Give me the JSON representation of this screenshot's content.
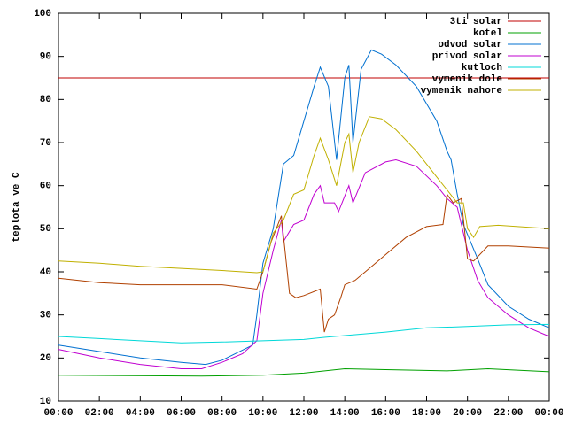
{
  "chart_data": {
    "type": "line",
    "y_label": "teplota ve C",
    "legend": "top-right",
    "xlim": [
      0,
      24
    ],
    "xticks": [
      {
        "value": 0,
        "label": "00:00"
      },
      {
        "value": 2,
        "label": "02:00"
      },
      {
        "value": 4,
        "label": "04:00"
      },
      {
        "value": 6,
        "label": "06:00"
      },
      {
        "value": 8,
        "label": "08:00"
      },
      {
        "value": 10,
        "label": "10:00"
      },
      {
        "value": 12,
        "label": "12:00"
      },
      {
        "value": 14,
        "label": "14:00"
      },
      {
        "value": 16,
        "label": "16:00"
      },
      {
        "value": 18,
        "label": "18:00"
      },
      {
        "value": 20,
        "label": "20:00"
      },
      {
        "value": 22,
        "label": "22:00"
      },
      {
        "value": 24,
        "label": "00:00"
      }
    ],
    "ylim": [
      10,
      100
    ],
    "yticks": [
      10,
      20,
      30,
      40,
      50,
      60,
      70,
      80,
      90,
      100
    ],
    "series": [
      {
        "name": "3ti solar",
        "color": "#c00000",
        "x": [
          0,
          24
        ],
        "values": [
          85,
          85
        ]
      },
      {
        "name": "kotel",
        "color": "#00a000",
        "x": [
          0,
          7,
          10,
          12,
          14,
          16,
          19,
          21,
          24
        ],
        "values": [
          16,
          15.8,
          16,
          16.5,
          17.5,
          17.3,
          17,
          17.5,
          16.8
        ]
      },
      {
        "name": "odvod solar",
        "color": "#0070d0",
        "x": [
          0,
          2,
          4,
          6,
          7.2,
          8,
          9.5,
          9.7,
          10,
          10.5,
          11,
          11.5,
          12,
          12.5,
          12.8,
          13.2,
          13.6,
          14,
          14.2,
          14.4,
          14.8,
          15.3,
          15.8,
          16.5,
          17.5,
          18.5,
          19,
          19.2,
          19.5,
          19.8,
          20.5,
          21,
          22,
          23,
          24
        ],
        "values": [
          23,
          21.5,
          20,
          19,
          18.5,
          19.5,
          23,
          30,
          42,
          50,
          65,
          67,
          75,
          83,
          87.5,
          83,
          66,
          85,
          88,
          70,
          87,
          91.5,
          90.5,
          88,
          83,
          75,
          68,
          66,
          58,
          51,
          43,
          37,
          32,
          29,
          27
        ]
      },
      {
        "name": "privod solar",
        "color": "#c000d0",
        "x": [
          0,
          2,
          4,
          6,
          7,
          8,
          9,
          9.7,
          10,
          10.5,
          10.9,
          11,
          11.5,
          12,
          12.5,
          12.8,
          13,
          13.5,
          13.7,
          14.2,
          14.4,
          15,
          16,
          16.5,
          17.5,
          18.5,
          19,
          19.5,
          20,
          20.5,
          21,
          22,
          23,
          24
        ],
        "values": [
          22,
          20,
          18.5,
          17.5,
          17.5,
          19,
          21,
          24,
          35,
          45,
          52,
          47,
          51,
          52,
          58,
          60,
          56,
          56,
          54,
          60,
          56,
          63,
          65.5,
          66,
          64.5,
          60,
          57,
          55,
          45,
          38,
          34,
          30,
          27,
          25
        ]
      },
      {
        "name": "kutloch",
        "color": "#00d8d8",
        "x": [
          0,
          2,
          4,
          6,
          8,
          10,
          12,
          13,
          14,
          16,
          18,
          20,
          22,
          24
        ],
        "values": [
          25,
          24.5,
          24,
          23.5,
          23.7,
          24,
          24.3,
          24.8,
          25.2,
          26,
          27,
          27.3,
          27.7,
          27.8
        ]
      },
      {
        "name": "vymenik dole",
        "color": "#b04000",
        "x": [
          0,
          2,
          4,
          6,
          8,
          9.7,
          10,
          10.4,
          10.9,
          11.3,
          11.6,
          12,
          12.8,
          13,
          13.2,
          13.5,
          13.8,
          14,
          14.5,
          15,
          16,
          17,
          18,
          18.8,
          19,
          19.3,
          19.7,
          20,
          20.3,
          21,
          22,
          24
        ],
        "values": [
          38.5,
          37.5,
          37,
          37,
          37,
          36,
          40,
          47,
          53,
          35,
          34,
          34.5,
          36,
          26,
          29,
          30,
          34,
          37,
          38,
          40,
          44,
          48,
          50.5,
          51,
          58,
          56,
          57,
          43,
          42.5,
          46,
          46,
          45.5
        ]
      },
      {
        "name": "vymenik nahore",
        "color": "#c0b000",
        "x": [
          0,
          2,
          4,
          6,
          8,
          9.7,
          10,
          10.5,
          11,
          11.5,
          12,
          12.5,
          12.8,
          13.2,
          13.6,
          14,
          14.2,
          14.4,
          14.7,
          15.2,
          15.8,
          16.5,
          17.5,
          18.5,
          19,
          19.5,
          19.8,
          20,
          20.3,
          20.6,
          21.5,
          24
        ],
        "values": [
          42.5,
          42,
          41.3,
          40.8,
          40.3,
          39.8,
          40,
          49,
          52,
          58,
          59,
          67,
          71,
          66,
          60,
          70,
          72,
          63,
          70,
          76,
          75.5,
          73,
          68,
          62,
          59,
          56,
          56,
          50,
          48,
          50.5,
          50.8,
          50
        ]
      }
    ]
  }
}
